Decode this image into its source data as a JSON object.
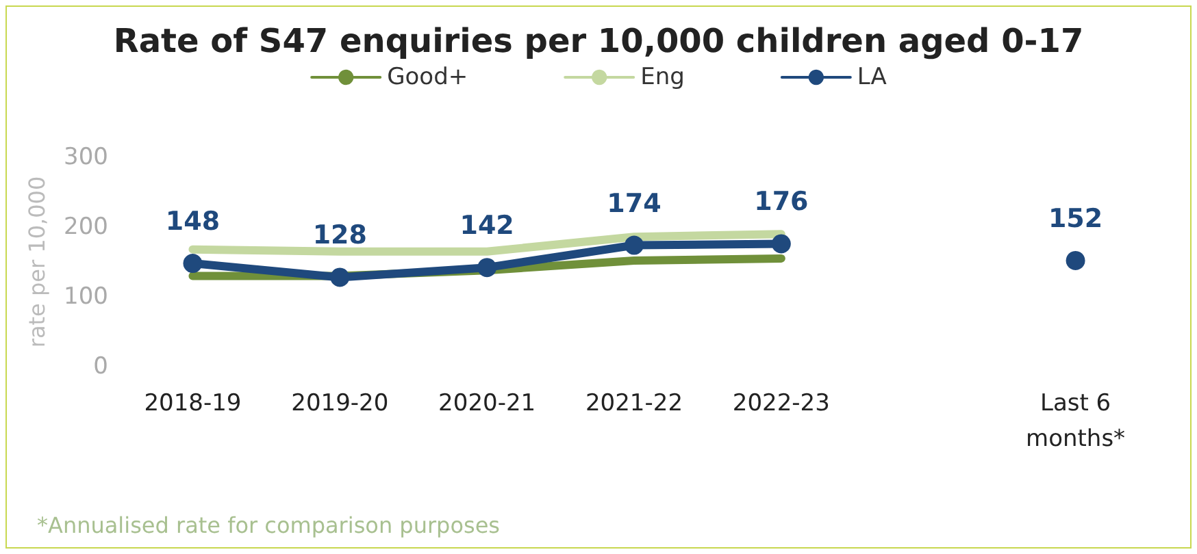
{
  "chart_data": {
    "type": "line",
    "title": "Rate of S47 enquiries per 10,000 children aged 0-17",
    "ylabel": "rate per 10,000",
    "categories": [
      "2018-19",
      "2019-20",
      "2020-21",
      "2021-22",
      "2022-23",
      null,
      "Last 6\nmonths*"
    ],
    "series": [
      {
        "name": "Good+",
        "color": "#70903a",
        "marker": "none",
        "values": [
          130,
          130,
          138,
          152,
          155,
          null,
          null
        ]
      },
      {
        "name": "Eng",
        "color": "#c4d8a0",
        "marker": "none",
        "values": [
          168,
          165,
          165,
          186,
          190,
          null,
          null
        ]
      },
      {
        "name": "LA",
        "color": "#1f497d",
        "marker": "circle",
        "values": [
          148,
          128,
          142,
          174,
          176,
          null,
          152
        ],
        "value_labels": [
          "148",
          "128",
          "142",
          "174",
          "176",
          null,
          "152"
        ]
      }
    ],
    "ylim": [
      0,
      300
    ],
    "yticks": [
      0,
      100,
      200,
      300
    ],
    "grid": false,
    "legend": "top",
    "annotations": [
      "*Annualised rate for comparison purposes"
    ]
  }
}
